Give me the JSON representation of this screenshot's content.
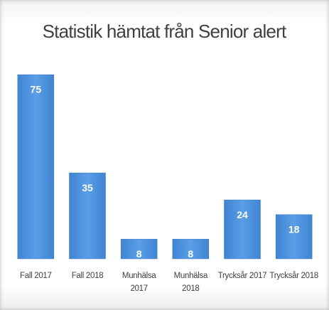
{
  "chart_data": {
    "type": "bar",
    "title": "Statistik hämtat från Senior alert",
    "categories": [
      "Fall 2017",
      "Fall 2018",
      "Munhälsa 2017",
      "Munhälsa 2018",
      "Trycksår 2017",
      "Trycksår 2018"
    ],
    "values": [
      75,
      35,
      8,
      8,
      24,
      18
    ],
    "color": "#4a8fd9",
    "grid": false
  }
}
